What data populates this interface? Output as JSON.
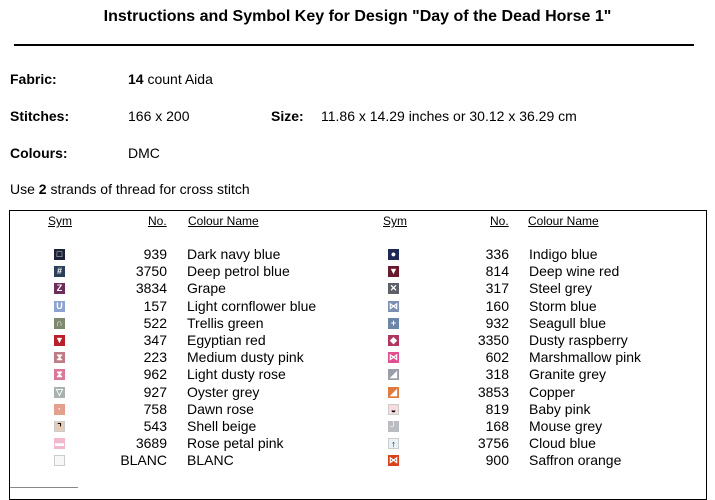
{
  "title": "Instructions and Symbol Key for Design \"Day of the Dead Horse 1\"",
  "fabric": {
    "label": "Fabric:",
    "count": "14",
    "rest": " count Aida"
  },
  "stitches": {
    "label": "Stitches:",
    "value": "166 x 200"
  },
  "size": {
    "label": "Size:",
    "value": "11.86 x 14.29 inches or 30.12 x 36.29 cm"
  },
  "colours": {
    "label": "Colours:",
    "value": "DMC"
  },
  "note": {
    "pre": "Use ",
    "strands": "2",
    "post": " strands of thread for cross stitch"
  },
  "headers": {
    "sym": "Sym",
    "no": "No.",
    "name": "Colour Name"
  },
  "left_items": [
    {
      "no": "939",
      "name": "Dark navy blue",
      "color": "#1b2238",
      "glyph": "□"
    },
    {
      "no": "3750",
      "name": "Deep petrol blue",
      "color": "#2c3f58",
      "glyph": "#"
    },
    {
      "no": "3834",
      "name": "Grape",
      "color": "#6d2d5a",
      "glyph": "Z"
    },
    {
      "no": "157",
      "name": "Light cornflower blue",
      "color": "#8fa3d0",
      "glyph": "U"
    },
    {
      "no": "522",
      "name": "Trellis green",
      "color": "#7d8a6e",
      "glyph": "∩"
    },
    {
      "no": "347",
      "name": "Egyptian red",
      "color": "#b8202b",
      "glyph": "▼"
    },
    {
      "no": "223",
      "name": "Medium dusty pink",
      "color": "#c07c84",
      "glyph": "⧗"
    },
    {
      "no": "962",
      "name": "Light dusty rose",
      "color": "#d9789a",
      "glyph": "⧗"
    },
    {
      "no": "927",
      "name": "Oyster grey",
      "color": "#a7b3ac",
      "glyph": "▽"
    },
    {
      "no": "758",
      "name": "Dawn rose",
      "color": "#e3a08c",
      "glyph": "·"
    },
    {
      "no": "543",
      "name": "Shell beige",
      "color": "#e6cdb9",
      "glyph": "⌝"
    },
    {
      "no": "3689",
      "name": "Rose petal pink",
      "color": "#f1b8cf",
      "glyph": "▬"
    },
    {
      "no": "BLANC",
      "name": "BLANC",
      "color": "#f7f7f7",
      "glyph": ""
    }
  ],
  "right_items": [
    {
      "no": "336",
      "name": "Indigo blue",
      "color": "#1e2a55",
      "glyph": "●"
    },
    {
      "no": "814",
      "name": "Deep wine red",
      "color": "#6a1a2c",
      "glyph": "▼"
    },
    {
      "no": "317",
      "name": "Steel grey",
      "color": "#5b5f68",
      "glyph": "✕"
    },
    {
      "no": "160",
      "name": "Storm blue",
      "color": "#7e8fb4",
      "glyph": "⋈"
    },
    {
      "no": "932",
      "name": "Seagull blue",
      "color": "#6c86a8",
      "glyph": "+"
    },
    {
      "no": "3350",
      "name": "Dusty raspberry",
      "color": "#b0385f",
      "glyph": "◆"
    },
    {
      "no": "602",
      "name": "Marshmallow pink",
      "color": "#e04f91",
      "glyph": "⋈"
    },
    {
      "no": "318",
      "name": "Granite grey",
      "color": "#9a9ea6",
      "glyph": "◢"
    },
    {
      "no": "3853",
      "name": "Copper",
      "color": "#e07a40",
      "glyph": "◢"
    },
    {
      "no": "819",
      "name": "Baby pink",
      "color": "#f8dcdf",
      "glyph": "◒"
    },
    {
      "no": "168",
      "name": "Mouse grey",
      "color": "#b9bcc0",
      "glyph": "┘"
    },
    {
      "no": "3756",
      "name": "Cloud blue",
      "color": "#e8f2f7",
      "glyph": "↑"
    },
    {
      "no": "900",
      "name": "Saffron orange",
      "color": "#d9401c",
      "glyph": "⋈"
    }
  ]
}
